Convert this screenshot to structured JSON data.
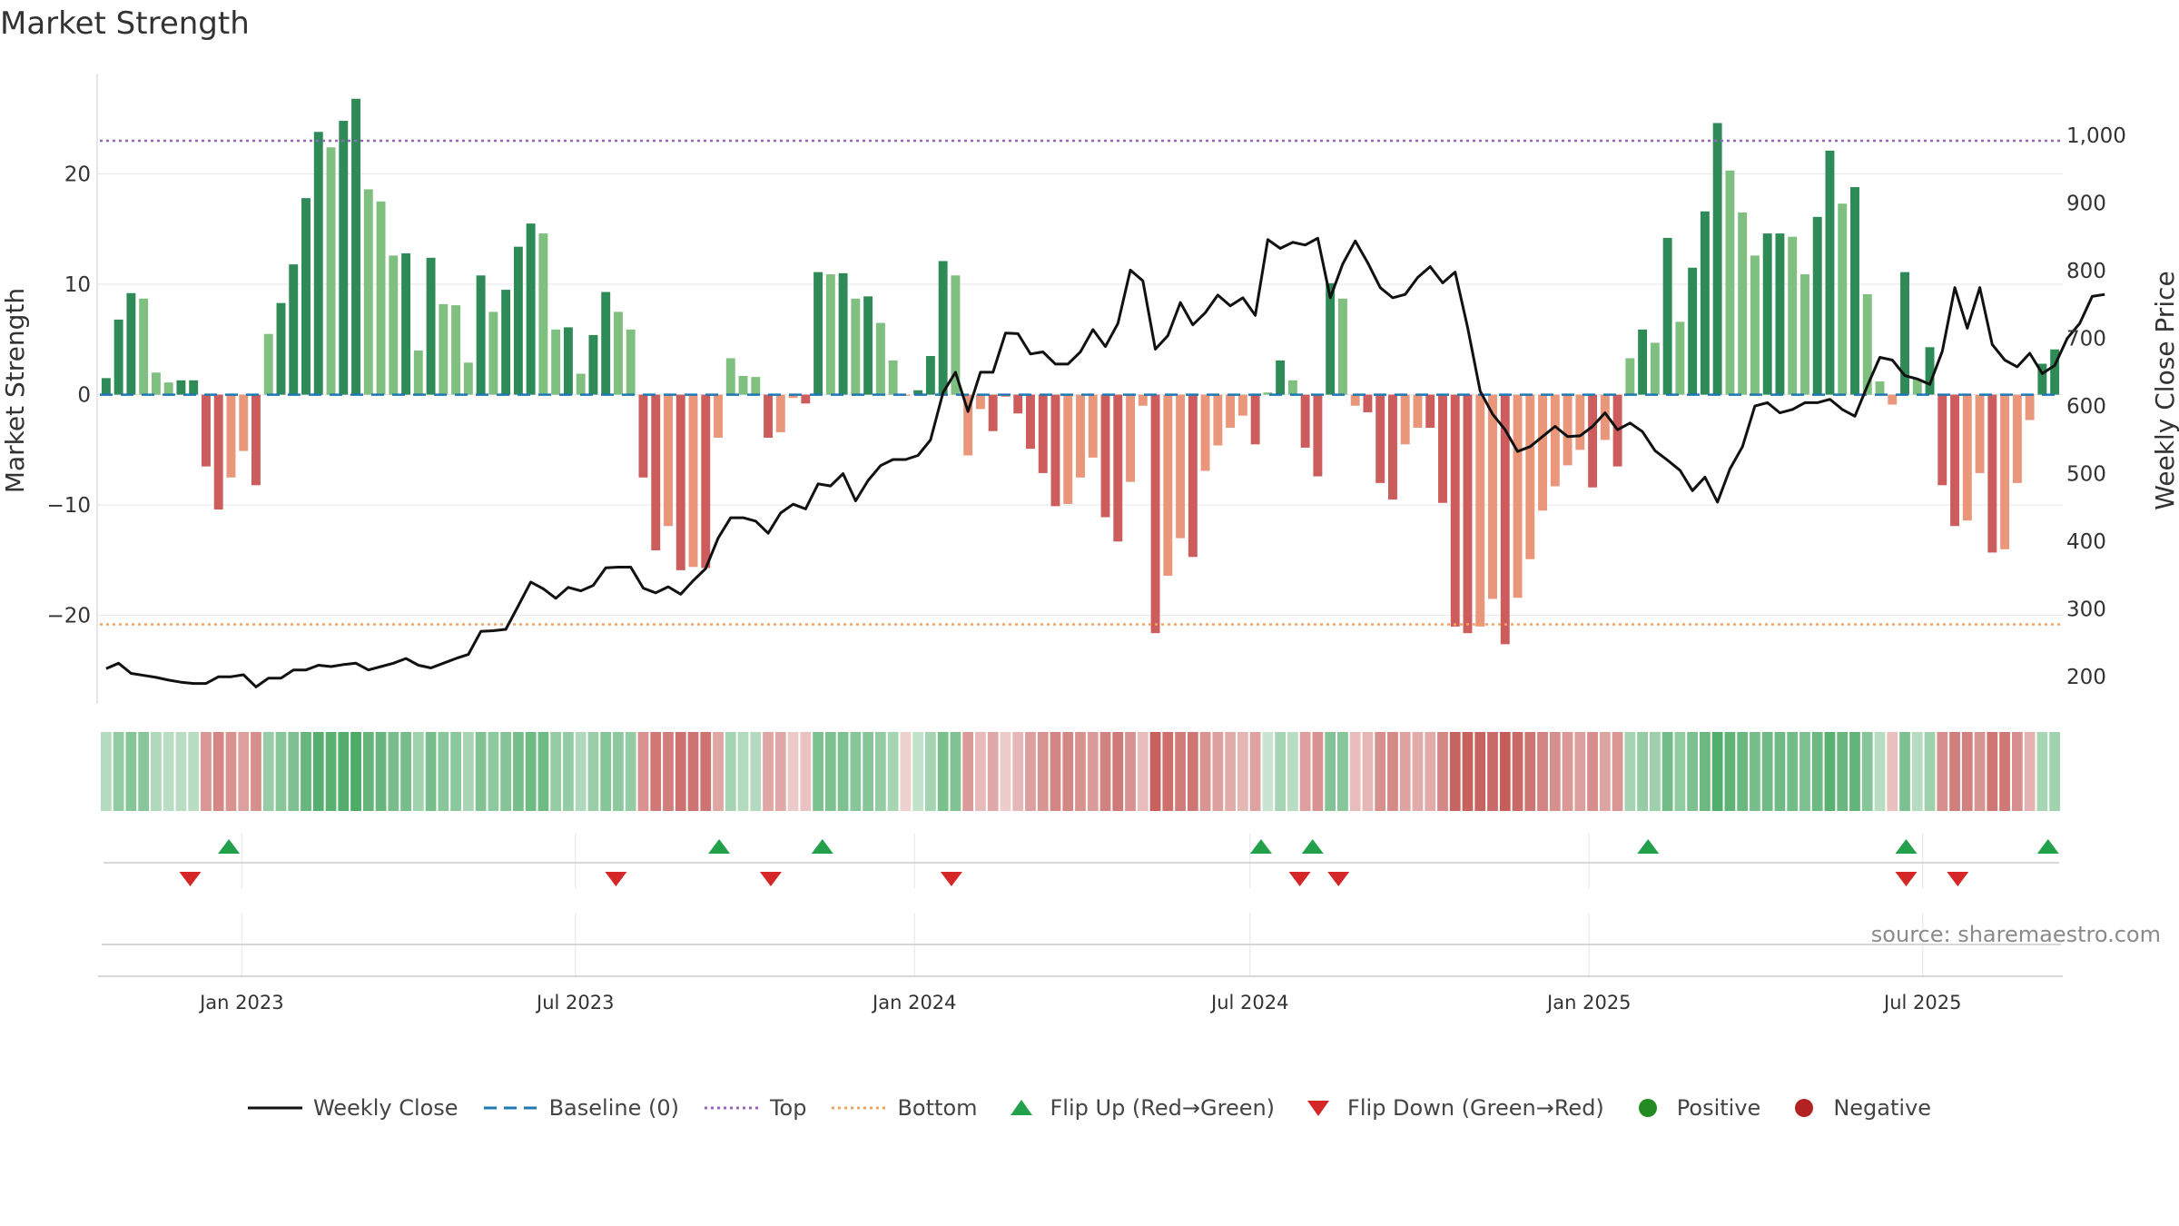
{
  "title": "Market Strength",
  "source": "source: sharemaestro.com",
  "colors": {
    "pos_strong": "#2e8b57",
    "pos_weak": "#7fbf7f",
    "neg_strong": "#cd5c5c",
    "neg_weak": "#e9967a",
    "close_line": "#111111",
    "baseline": "#1f77b4",
    "top": "#9467bd",
    "bottom": "#f4a460",
    "flip_up": "#22a04a",
    "flip_down": "#d62728",
    "legend_positive": "#228b22",
    "legend_negative": "#b22222"
  },
  "legend": [
    {
      "key": "close",
      "label": "Weekly Close"
    },
    {
      "key": "baseline",
      "label": "Baseline (0)"
    },
    {
      "key": "top",
      "label": "Top"
    },
    {
      "key": "bottom",
      "label": "Bottom"
    },
    {
      "key": "flip_up",
      "label": "Flip Up (Red→Green)"
    },
    {
      "key": "flip_down",
      "label": "Flip Down (Green→Red)"
    },
    {
      "key": "positive",
      "label": "Positive"
    },
    {
      "key": "negative",
      "label": "Negative"
    }
  ],
  "chart_data": {
    "type": "bar",
    "ylabel": "Market Strength",
    "y2label": "Weekly Close Price",
    "ylim": [
      -28,
      29
    ],
    "y_ticks": [
      -20,
      -10,
      0,
      10,
      20
    ],
    "y_tick_labels": [
      "−20",
      "−10",
      "0",
      "10",
      "20"
    ],
    "y2lim": [
      160,
      1090
    ],
    "y2_ticks": [
      200,
      300,
      400,
      500,
      600,
      700,
      800,
      900,
      1000
    ],
    "y2_tick_labels": [
      "200",
      "300",
      "400",
      "500",
      "600",
      "700",
      "800",
      "900",
      "1,000"
    ],
    "top_line": 23.0,
    "bottom_line": -20.8,
    "baseline": 0,
    "x_start": "2022-10-16",
    "x_end": "2025-09-14",
    "x_ticks": [
      "2023-01-01",
      "2023-07-01",
      "2024-01-01",
      "2024-07-01",
      "2025-01-01",
      "2025-07-01"
    ],
    "x_tick_labels": [
      "Jan 2023",
      "Jul 2023",
      "Jan 2024",
      "Jul 2024",
      "Jan 2025",
      "Jul 2025"
    ],
    "grid": true,
    "legend_position": "bottom",
    "strength": [
      1.5,
      6.8,
      9.2,
      8.7,
      2.0,
      1.1,
      1.3,
      1.3,
      -6.5,
      -10.4,
      -7.5,
      -5.1,
      -8.2,
      5.5,
      8.3,
      11.8,
      17.8,
      23.8,
      22.4,
      24.8,
      26.8,
      18.6,
      17.5,
      12.6,
      12.8,
      4.0,
      12.4,
      8.2,
      8.1,
      2.9,
      10.8,
      7.5,
      9.5,
      13.4,
      15.5,
      14.6,
      5.9,
      6.1,
      1.9,
      5.4,
      9.3,
      7.5,
      5.9,
      -7.5,
      -14.1,
      -11.9,
      -15.9,
      -15.6,
      -15.7,
      -3.9,
      3.3,
      1.7,
      1.6,
      -3.9,
      -3.4,
      -0.3,
      -0.8,
      11.1,
      10.9,
      11.0,
      8.7,
      8.9,
      6.5,
      3.1,
      -0.1,
      0.4,
      3.5,
      12.1,
      10.8,
      -5.5,
      -1.3,
      -3.3,
      -0.2,
      -1.7,
      -4.9,
      -7.1,
      -10.1,
      -9.9,
      -7.5,
      -5.7,
      -11.1,
      -13.3,
      -7.9,
      -1.0,
      -21.6,
      -16.4,
      -13.0,
      -14.7,
      -6.9,
      -4.6,
      -3.0,
      -1.9,
      -4.5,
      0.2,
      3.1,
      1.3,
      -4.8,
      -7.4,
      10.1,
      8.7,
      -1.0,
      -1.6,
      -8.0,
      -9.5,
      -4.5,
      -3.0,
      -3.0,
      -9.8,
      -21.0,
      -21.6,
      -21.0,
      -18.5,
      -22.6,
      -18.4,
      -14.9,
      -10.5,
      -8.3,
      -6.4,
      -5.0,
      -8.4,
      -4.1,
      -6.5,
      3.3,
      5.9,
      4.7,
      14.2,
      6.6,
      11.5,
      16.6,
      24.6,
      20.3,
      16.5,
      12.6,
      14.6,
      14.6,
      14.3,
      10.9,
      16.1,
      22.1,
      17.3,
      18.8,
      9.1,
      1.2,
      -0.9,
      11.1,
      1.4,
      4.3,
      -8.2,
      -11.9,
      -11.4,
      -7.1,
      -14.3,
      -14.0,
      -8.0,
      -2.3,
      2.8,
      4.1
    ],
    "weekly_close": [
      212,
      220,
      205,
      202,
      199,
      195,
      192,
      190,
      190,
      200,
      200,
      203,
      185,
      198,
      198,
      210,
      210,
      217,
      215,
      218,
      220,
      210,
      215,
      220,
      227,
      217,
      213,
      220,
      227,
      233,
      267,
      268,
      270,
      305,
      340,
      330,
      316,
      332,
      327,
      335,
      361,
      362,
      362,
      331,
      324,
      333,
      322,
      342,
      360,
      405,
      435,
      435,
      430,
      412,
      442,
      455,
      448,
      485,
      482,
      500,
      460,
      490,
      512,
      521,
      521,
      527,
      550,
      620,
      650,
      592,
      650,
      650,
      708,
      707,
      677,
      680,
      662,
      662,
      680,
      713,
      688,
      722,
      801,
      785,
      684,
      704,
      753,
      720,
      738,
      764,
      748,
      760,
      734,
      846,
      833,
      842,
      838,
      848,
      760,
      810,
      844,
      812,
      775,
      760,
      765,
      790,
      806,
      782,
      798,
      716,
      622,
      588,
      565,
      533,
      540,
      555,
      570,
      555,
      556,
      570,
      590,
      565,
      575,
      562,
      534,
      520,
      505,
      475,
      495,
      458,
      507,
      540,
      600,
      605,
      590,
      595,
      605,
      605,
      610,
      595,
      585,
      630,
      672,
      668,
      645,
      640,
      632,
      681,
      775,
      715,
      775,
      691,
      668,
      658,
      678,
      648,
      660,
      700,
      722,
      762,
      765
    ],
    "flip_up_dates": [
      "2022-12-25",
      "2023-09-17",
      "2023-11-12",
      "2024-07-07",
      "2024-08-04",
      "2025-02-02",
      "2025-06-22",
      "2025-09-07"
    ],
    "flip_down_dates": [
      "2022-12-04",
      "2023-07-23",
      "2023-10-15",
      "2024-01-21",
      "2024-07-28",
      "2024-08-18",
      "2025-06-22",
      "2025-07-20"
    ]
  }
}
